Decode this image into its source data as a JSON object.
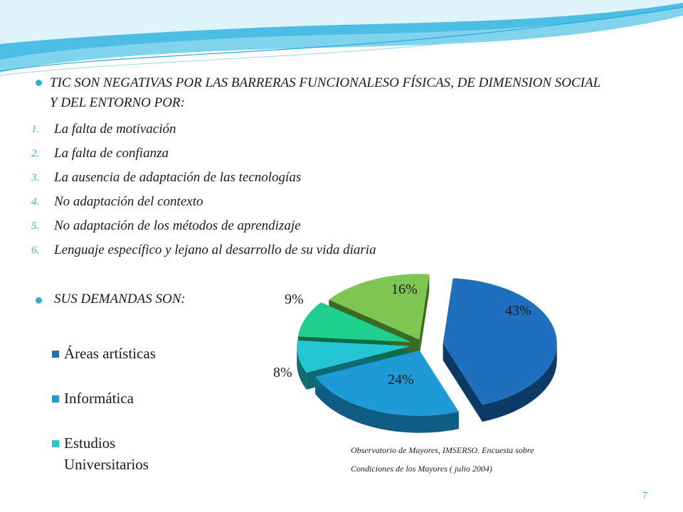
{
  "slide": {
    "heading": "TIC SON NEGATIVAS POR LAS BARRERAS FUNCIONALESO FÍSICAS, DE DIMENSION SOCIAL Y  DEL ENTORNO POR:",
    "items": [
      {
        "num": "1.",
        "text": "La falta de motivación"
      },
      {
        "num": "2.",
        "text": "La  falta de confianza"
      },
      {
        "num": "3.",
        "text": "La ausencia de adaptación de las tecnologías"
      },
      {
        "num": "4.",
        "text": "No adaptación del contexto"
      },
      {
        "num": "5.",
        "text": "No adaptación de los métodos de aprendizaje"
      },
      {
        "num": "6.",
        "text": "Lenguaje específico y lejano al desarrollo de su vida diaria"
      }
    ],
    "demands": "SUS  DEMANDAS  SON:",
    "source_line1": "Observatorio de Mayores, IMSERSO. Encuesta  sobre",
    "source_line2": "Condiciones de los Mayores ( julio 2004)",
    "page_number": "7"
  },
  "chart_data": {
    "type": "pie",
    "legend": [
      {
        "label": "Áreas artísticas",
        "color": "#1f6fbf"
      },
      {
        "label": "Informática",
        "color": "#1e9bd6"
      },
      {
        "label": "Estudios Universitarios",
        "color": "#25c6d3"
      }
    ],
    "slices": [
      {
        "label": "43%",
        "value": 43,
        "color": "#1f6fbf",
        "side": "#0b3a66"
      },
      {
        "label": "24%",
        "value": 24,
        "color": "#1e9bd6",
        "side": "#0f5c84"
      },
      {
        "label": "8%",
        "value": 8,
        "color": "#25c6d3",
        "side": "#0f6b73"
      },
      {
        "label": "9%",
        "value": 9,
        "color": "#1ecf8e",
        "side": "#0d6b48"
      },
      {
        "label": "16%",
        "value": 16,
        "color": "#7ec552",
        "side": "#3b6a22"
      }
    ]
  }
}
